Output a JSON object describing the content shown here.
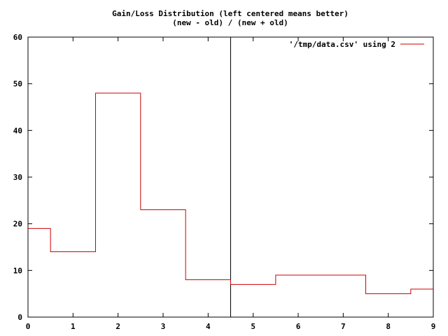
{
  "chart_data": {
    "type": "line",
    "style": "steps",
    "title": "Gain/Loss Distribution (left centered means better)",
    "subtitle": "(new - old) / (new + old)",
    "xlabel": "",
    "ylabel": "",
    "xlim": [
      0,
      9
    ],
    "ylim": [
      0,
      60
    ],
    "xticks": [
      "0",
      "1",
      "2",
      "3",
      "4",
      "5",
      "6",
      "7",
      "8",
      "9"
    ],
    "yticks": [
      "0",
      "10",
      "20",
      "30",
      "40",
      "50",
      "60"
    ],
    "grid": false,
    "legend_position": "top-right",
    "series": [
      {
        "name": "'/tmp/data.csv' using 2",
        "color": "#cc0000",
        "x": [
          0,
          1,
          2,
          3,
          4,
          5,
          6,
          7,
          8,
          9
        ],
        "values": [
          19,
          14,
          48,
          23,
          8,
          7,
          9,
          9,
          5,
          6
        ]
      }
    ],
    "reference_line": {
      "axis": "x",
      "value": 4.5,
      "color": "#000000"
    }
  }
}
